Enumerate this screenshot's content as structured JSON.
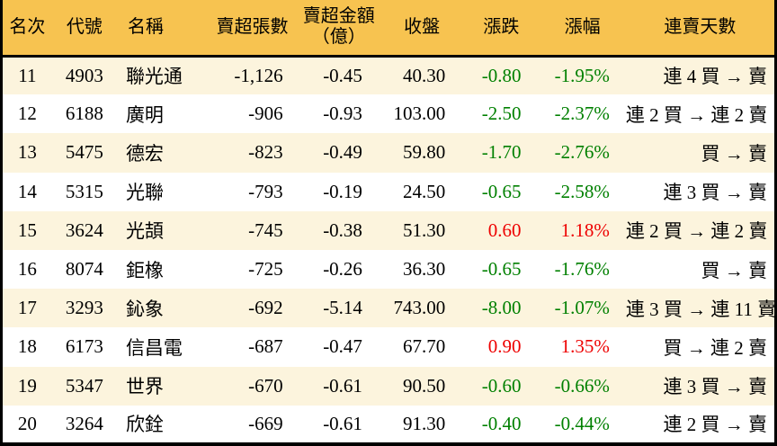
{
  "chart_data": {
    "type": "table",
    "header": {
      "rank": "名次",
      "code": "代號",
      "name": "名稱",
      "sell_volume": "賣超張數",
      "sell_amount_line1": "賣超金額",
      "sell_amount_line2": "（億）",
      "close": "收盤",
      "change": "漲跌",
      "change_pct": "漲幅",
      "streak": "連賣天數"
    },
    "rows": [
      {
        "rank": "11",
        "code": "4903",
        "name": "聯光通",
        "sell_volume": "-1,126",
        "sell_amount": "-0.45",
        "close": "40.30",
        "change": "-0.80",
        "change_pct": "-1.95%",
        "direction": "down",
        "streak": "連 4 買 → 賣"
      },
      {
        "rank": "12",
        "code": "6188",
        "name": "廣明",
        "sell_volume": "-906",
        "sell_amount": "-0.93",
        "close": "103.00",
        "change": "-2.50",
        "change_pct": "-2.37%",
        "direction": "down",
        "streak": "連 2 買 → 連 2 賣"
      },
      {
        "rank": "13",
        "code": "5475",
        "name": "德宏",
        "sell_volume": "-823",
        "sell_amount": "-0.49",
        "close": "59.80",
        "change": "-1.70",
        "change_pct": "-2.76%",
        "direction": "down",
        "streak": "買 → 賣"
      },
      {
        "rank": "14",
        "code": "5315",
        "name": "光聯",
        "sell_volume": "-793",
        "sell_amount": "-0.19",
        "close": "24.50",
        "change": "-0.65",
        "change_pct": "-2.58%",
        "direction": "down",
        "streak": "連 3 買 → 賣"
      },
      {
        "rank": "15",
        "code": "3624",
        "name": "光頡",
        "sell_volume": "-745",
        "sell_amount": "-0.38",
        "close": "51.30",
        "change": "0.60",
        "change_pct": "1.18%",
        "direction": "up",
        "streak": "連 2 買 → 連 2 賣"
      },
      {
        "rank": "16",
        "code": "8074",
        "name": "鉅橡",
        "sell_volume": "-725",
        "sell_amount": "-0.26",
        "close": "36.30",
        "change": "-0.65",
        "change_pct": "-1.76%",
        "direction": "down",
        "streak": "買 → 賣"
      },
      {
        "rank": "17",
        "code": "3293",
        "name": "鈊象",
        "sell_volume": "-692",
        "sell_amount": "-5.14",
        "close": "743.00",
        "change": "-8.00",
        "change_pct": "-1.07%",
        "direction": "down",
        "streak": "連 3 買 → 連 11 賣"
      },
      {
        "rank": "18",
        "code": "6173",
        "name": "信昌電",
        "sell_volume": "-687",
        "sell_amount": "-0.47",
        "close": "67.70",
        "change": "0.90",
        "change_pct": "1.35%",
        "direction": "up",
        "streak": "買 → 連 2 賣"
      },
      {
        "rank": "19",
        "code": "5347",
        "name": "世界",
        "sell_volume": "-670",
        "sell_amount": "-0.61",
        "close": "90.50",
        "change": "-0.60",
        "change_pct": "-0.66%",
        "direction": "down",
        "streak": "連 3 買 → 賣"
      },
      {
        "rank": "20",
        "code": "3264",
        "name": "欣銓",
        "sell_volume": "-669",
        "sell_amount": "-0.61",
        "close": "91.30",
        "change": "-0.40",
        "change_pct": "-0.44%",
        "direction": "down",
        "streak": "連 2 買 → 賣"
      }
    ],
    "colors": {
      "header_bg": "#f7c350",
      "row_alt_bg": "#fcf4dd",
      "row_bg": "#ffffff",
      "up": "#ee0000",
      "down": "#008000",
      "border": "#000000"
    },
    "layout": {
      "grid": "off",
      "legend": "none",
      "row_striping": "odd-cream-even-white"
    }
  }
}
